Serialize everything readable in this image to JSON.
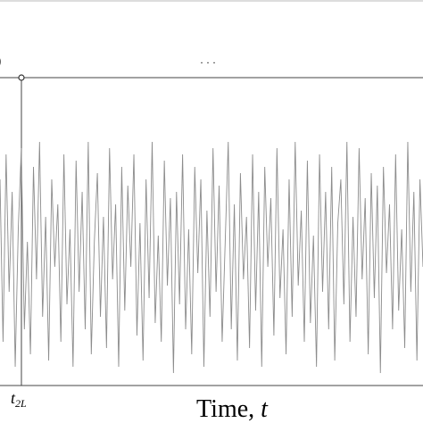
{
  "chart_data": {
    "type": "line",
    "color": "#8c8c8c",
    "ylim": [
      -1,
      1
    ],
    "left_fragment": ")",
    "ellipsis": "· · ·",
    "xtick_label": {
      "base": "t",
      "sub": "2L"
    },
    "xlabel": {
      "text": "Time, ",
      "symbol": "t"
    },
    "values": [
      0.6,
      -0.7,
      0.8,
      -0.3,
      0.5,
      -0.9,
      0.2,
      0.85,
      -0.6,
      0.1,
      -0.8,
      0.7,
      -0.2,
      0.9,
      -0.5,
      0.3,
      -0.85,
      0.6,
      -0.1,
      0.4,
      -0.7,
      0.8,
      -0.4,
      0.2,
      -0.9,
      0.75,
      -0.3,
      0.5,
      -0.6,
      0.9,
      -0.8,
      0.1,
      0.65,
      -0.5,
      0.3,
      -0.75,
      0.85,
      -0.2,
      0.4,
      -0.9,
      0.7,
      -0.45,
      0.55,
      -0.1,
      0.8,
      -0.65,
      0.25,
      -0.85,
      0.6,
      -0.35,
      0.9,
      -0.55,
      0.15,
      -0.7,
      0.75,
      -0.25,
      0.45,
      -0.95,
      0.5,
      -0.4,
      0.8,
      -0.6,
      0.2,
      -0.8,
      0.7,
      -0.15,
      0.6,
      -0.9,
      0.35,
      -0.5,
      0.85,
      -0.3,
      0.55,
      -0.7,
      0.1,
      0.9,
      -0.6,
      0.4,
      -0.85,
      0.65,
      -0.2,
      0.3,
      -0.75,
      0.8,
      -0.45,
      0.5,
      -0.9,
      0.7,
      -0.1,
      0.45,
      -0.65,
      0.85,
      -0.35,
      0.2,
      -0.8,
      0.6,
      -0.5,
      0.9,
      -0.25,
      0.35,
      -0.7,
      0.75,
      -0.55,
      0.15,
      -0.9,
      0.8,
      -0.3,
      0.5,
      -0.6,
      0.7,
      -0.85,
      0.25,
      0.6,
      -0.4,
      0.9,
      -0.7,
      0.3,
      -0.5,
      0.85,
      -0.2,
      0.45,
      -0.8,
      0.65,
      -0.35,
      0.55,
      -0.95,
      0.7,
      -0.15,
      0.4,
      -0.6,
      0.8,
      -0.45,
      0.2,
      -0.75,
      0.9,
      -0.3,
      0.5,
      -0.85,
      0.6,
      -0.1
    ]
  }
}
